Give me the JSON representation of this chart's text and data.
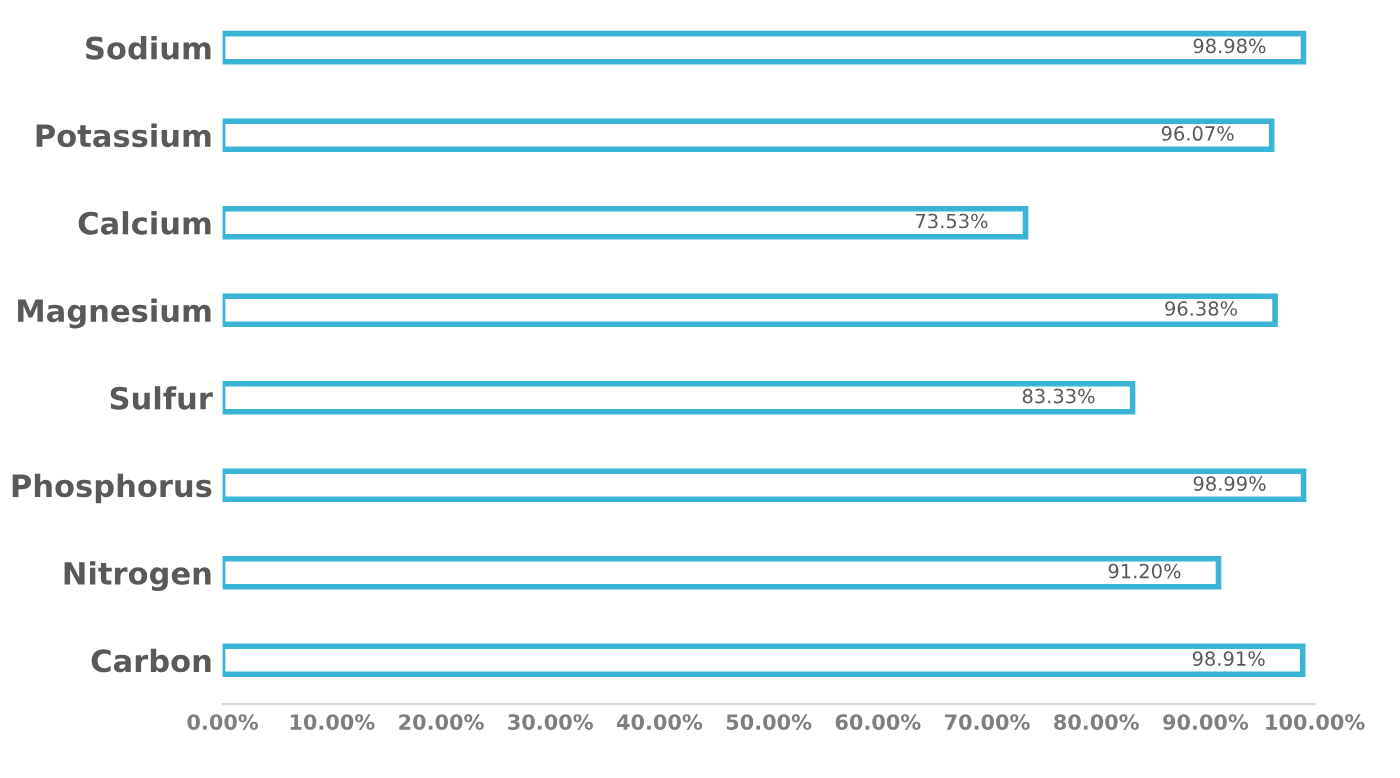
{
  "chart_data": {
    "type": "bar",
    "orientation": "horizontal",
    "categories": [
      "Sodium",
      "Potassium",
      "Calcium",
      "Magnesium",
      "Sulfur",
      "Phosphorus",
      "Nitrogen",
      "Carbon"
    ],
    "values": [
      98.98,
      96.07,
      73.53,
      96.38,
      83.33,
      98.99,
      91.2,
      98.91
    ],
    "value_labels": [
      "98.98%",
      "96.07%",
      "73.53%",
      "96.38%",
      "83.33%",
      "98.99%",
      "91.20%",
      "98.91%"
    ],
    "color": "#3ab4d4",
    "xlim": [
      0,
      100
    ],
    "xticks": [
      {
        "value": 0,
        "label": "0.00%"
      },
      {
        "value": 10,
        "label": "10.00%"
      },
      {
        "value": 20,
        "label": "20.00%"
      },
      {
        "value": 30,
        "label": "30.00%"
      },
      {
        "value": 40,
        "label": "40.00%"
      },
      {
        "value": 50,
        "label": "50.00%"
      },
      {
        "value": 60,
        "label": "60.00%"
      },
      {
        "value": 70,
        "label": "70.00%"
      },
      {
        "value": 80,
        "label": "80.00%"
      },
      {
        "value": 90,
        "label": "90.00%"
      },
      {
        "value": 100,
        "label": "100.00%"
      }
    ],
    "grid": false,
    "legend": false
  }
}
